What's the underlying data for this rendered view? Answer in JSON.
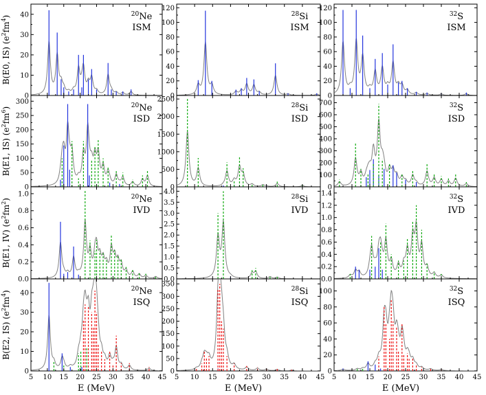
{
  "figure": {
    "xlabel": "E (MeV)",
    "row_ylabels": [
      {
        "main": "B(E0, IS) (e",
        "sup1": "2",
        "mid": "fm",
        "sup2": "4",
        "end": ")"
      },
      {
        "main": "B(E1, IS) (e",
        "sup1": "2",
        "mid": "fm",
        "sup2": "6",
        "end": ")"
      },
      {
        "main": "B(E1, IV) (e",
        "sup1": "2",
        "mid": "fm",
        "sup2": "2",
        "end": ")"
      },
      {
        "main": "B(E2, IS) (e",
        "sup1": "2",
        "mid": "fm",
        "sup2": "4",
        "end": ")"
      }
    ],
    "x_ticks": [
      "5",
      "10",
      "15",
      "20",
      "25",
      "30",
      "35",
      "40",
      "45"
    ],
    "nuclei": [
      {
        "mass": "20",
        "symbol": "Ne"
      },
      {
        "mass": "28",
        "symbol": "Si"
      },
      {
        "mass": "32",
        "symbol": "S"
      }
    ],
    "modes": [
      "ISM",
      "ISD",
      "IVD",
      "ISQ"
    ],
    "colors": {
      "envelope": "#808080",
      "bar_blue": "#2233dd",
      "bar_green": "#11aa11",
      "bar_red": "#ee1111"
    }
  },
  "chart_data": [
    {
      "type": "line",
      "row": 0,
      "col": 0,
      "nucleus": "20Ne",
      "mode": "ISM",
      "xlim": [
        5,
        45
      ],
      "ylim": [
        0,
        45
      ],
      "y_ticks": [
        "0",
        "10",
        "20",
        "30",
        "40"
      ],
      "bar_color": "blue",
      "bar_style": "solid",
      "bars": [
        [
          10.5,
          42
        ],
        [
          13.0,
          31
        ],
        [
          14.2,
          8
        ],
        [
          15.0,
          4
        ],
        [
          16.5,
          2
        ],
        [
          18.0,
          3
        ],
        [
          19.5,
          20
        ],
        [
          20.5,
          4
        ],
        [
          21.0,
          20
        ],
        [
          22.5,
          8
        ],
        [
          23.5,
          13
        ],
        [
          25.0,
          3
        ],
        [
          28.5,
          16
        ],
        [
          29.5,
          3
        ],
        [
          31.0,
          2
        ],
        [
          33.0,
          2
        ],
        [
          35.5,
          3
        ]
      ],
      "envelope_width": 0.5
    },
    {
      "type": "line",
      "row": 0,
      "col": 1,
      "nucleus": "28Si",
      "mode": "ISM",
      "xlim": [
        5,
        45
      ],
      "ylim": [
        0,
        125
      ],
      "y_ticks": [
        "0",
        "20",
        "40",
        "60",
        "80",
        "100",
        "120"
      ],
      "bar_color": "blue",
      "bar_style": "solid",
      "bars": [
        [
          11.0,
          21
        ],
        [
          13.0,
          116
        ],
        [
          14.8,
          20
        ],
        [
          21.5,
          8
        ],
        [
          23.0,
          10
        ],
        [
          24.5,
          24
        ],
        [
          26.5,
          22
        ],
        [
          28.0,
          6
        ],
        [
          32.5,
          44
        ],
        [
          36.0,
          3
        ],
        [
          44.0,
          3
        ]
      ],
      "envelope_width": 0.5
    },
    {
      "type": "line",
      "row": 0,
      "col": 2,
      "nucleus": "32S",
      "mode": "ISM",
      "xlim": [
        5,
        45
      ],
      "ylim": [
        0,
        125
      ],
      "y_ticks": [
        "0",
        "20",
        "40",
        "60",
        "80",
        "100",
        "120"
      ],
      "bar_color": "blue",
      "bar_style": "solid",
      "bars": [
        [
          7.5,
          117
        ],
        [
          9.5,
          10
        ],
        [
          11.2,
          117
        ],
        [
          13.0,
          82
        ],
        [
          15.0,
          10
        ],
        [
          16.5,
          50
        ],
        [
          18.5,
          58
        ],
        [
          20.0,
          15
        ],
        [
          21.5,
          70
        ],
        [
          23.0,
          18
        ],
        [
          24.0,
          20
        ],
        [
          25.5,
          10
        ],
        [
          28.0,
          5
        ],
        [
          31.0,
          4
        ],
        [
          35.0,
          3
        ],
        [
          42.0,
          4
        ]
      ],
      "envelope_width": 0.5
    },
    {
      "type": "line",
      "row": 1,
      "col": 0,
      "nucleus": "20Ne",
      "mode": "ISD",
      "xlim": [
        5,
        45
      ],
      "ylim": [
        0,
        320
      ],
      "y_ticks": [
        "0",
        "50",
        "100",
        "150",
        "200",
        "250",
        "300"
      ],
      "bars_blue": [
        [
          14.0,
          25
        ],
        [
          15.0,
          145
        ],
        [
          16.2,
          290
        ],
        [
          16.8,
          60
        ],
        [
          22.3,
          290
        ],
        [
          22.8,
          40
        ],
        [
          29.0,
          15
        ],
        [
          32.0,
          10
        ]
      ],
      "bars_green": [
        [
          14.5,
          100
        ],
        [
          17.5,
          160
        ],
        [
          19.5,
          30
        ],
        [
          21.0,
          160
        ],
        [
          23.5,
          95
        ],
        [
          24.5,
          140
        ],
        [
          25.5,
          165
        ],
        [
          27.0,
          100
        ],
        [
          28.5,
          70
        ],
        [
          31.0,
          60
        ],
        [
          33.0,
          50
        ],
        [
          36.0,
          25
        ],
        [
          39.0,
          40
        ],
        [
          40.5,
          60
        ]
      ],
      "envelope_width": 0.5
    },
    {
      "type": "line",
      "row": 1,
      "col": 1,
      "nucleus": "28Si",
      "mode": "ISD",
      "xlim": [
        5,
        45
      ],
      "ylim": [
        0,
        2600
      ],
      "y_ticks": [
        "0",
        "500",
        "1000",
        "1500",
        "2000",
        "2500"
      ],
      "bars_blue": [
        [
          18.0,
          40
        ],
        [
          21.0,
          60
        ],
        [
          30.0,
          30
        ]
      ],
      "bars_green": [
        [
          8.0,
          2530
        ],
        [
          11.0,
          820
        ],
        [
          19.0,
          700
        ],
        [
          21.0,
          200
        ],
        [
          22.5,
          860
        ],
        [
          23.5,
          530
        ],
        [
          26.0,
          100
        ],
        [
          29.0,
          80
        ],
        [
          33.0,
          150
        ],
        [
          40.0,
          60
        ]
      ],
      "envelope_width": 0.5
    },
    {
      "type": "line",
      "row": 1,
      "col": 2,
      "nucleus": "32S",
      "mode": "ISD",
      "xlim": [
        5,
        45
      ],
      "ylim": [
        0,
        760
      ],
      "y_ticks": [
        "0",
        "100",
        "200",
        "300",
        "400",
        "500",
        "600",
        "700"
      ],
      "bars_blue": [
        [
          14.0,
          80
        ],
        [
          15.0,
          140
        ],
        [
          16.0,
          230
        ],
        [
          17.5,
          100
        ],
        [
          19.0,
          150
        ],
        [
          21.5,
          180
        ],
        [
          22.5,
          120
        ],
        [
          25.0,
          60
        ],
        [
          28.0,
          40
        ]
      ],
      "bars_green": [
        [
          6.5,
          60
        ],
        [
          11.0,
          360
        ],
        [
          12.5,
          150
        ],
        [
          14.5,
          110
        ],
        [
          16.0,
          200
        ],
        [
          17.5,
          690
        ],
        [
          18.5,
          230
        ],
        [
          20.5,
          190
        ],
        [
          24.0,
          110
        ],
        [
          27.0,
          140
        ],
        [
          31.0,
          200
        ],
        [
          33.0,
          110
        ],
        [
          35.0,
          90
        ],
        [
          37.0,
          70
        ],
        [
          39.0,
          110
        ],
        [
          42.0,
          40
        ]
      ],
      "envelope_width": 0.5
    },
    {
      "type": "line",
      "row": 2,
      "col": 0,
      "nucleus": "20Ne",
      "mode": "IVD",
      "xlim": [
        5,
        45
      ],
      "ylim": [
        0,
        1.08
      ],
      "y_ticks": [
        "0.0",
        "0.2",
        "0.4",
        "0.6",
        "0.8",
        "1.0"
      ],
      "bars_blue": [
        [
          14.0,
          0.67
        ],
        [
          15.0,
          0.06
        ],
        [
          16.2,
          0.08
        ],
        [
          18.0,
          0.38
        ],
        [
          19.5,
          0.05
        ]
      ],
      "bars_green": [
        [
          21.5,
          1.04
        ],
        [
          23.0,
          0.45
        ],
        [
          24.5,
          0.33
        ],
        [
          25.0,
          0.46
        ],
        [
          26.0,
          0.33
        ],
        [
          27.0,
          0.3
        ],
        [
          28.0,
          0.22
        ],
        [
          29.5,
          0.52
        ],
        [
          30.5,
          0.34
        ],
        [
          31.5,
          0.28
        ],
        [
          32.5,
          0.24
        ],
        [
          34.0,
          0.14
        ],
        [
          36.0,
          0.12
        ],
        [
          38.0,
          0.08
        ],
        [
          40.0,
          0.06
        ],
        [
          43.0,
          0.04
        ]
      ],
      "envelope_width": 0.5
    },
    {
      "type": "line",
      "row": 2,
      "col": 1,
      "nucleus": "28Si",
      "mode": "IVD",
      "xlim": [
        5,
        45
      ],
      "ylim": [
        0,
        4.2
      ],
      "y_ticks": [
        "0.0",
        "0.5",
        "1.0",
        "1.5",
        "2.0",
        "2.5",
        "3.0",
        "3.5",
        "4.0"
      ],
      "bars_blue": [
        [
          20.0,
          0.08
        ]
      ],
      "bars_green": [
        [
          16.5,
          3.0
        ],
        [
          18.0,
          4.0
        ],
        [
          26.0,
          0.4
        ],
        [
          27.0,
          0.5
        ],
        [
          31.0,
          0.15
        ],
        [
          33.0,
          0.12
        ]
      ],
      "envelope_width": 0.5
    },
    {
      "type": "line",
      "row": 2,
      "col": 2,
      "nucleus": "32S",
      "mode": "IVD",
      "xlim": [
        5,
        45
      ],
      "ylim": [
        0,
        1.5
      ],
      "y_ticks": [
        "0.0",
        "0.2",
        "0.4",
        "0.6",
        "0.8",
        "1.0",
        "1.2",
        "1.4"
      ],
      "bars_blue": [
        [
          11.0,
          0.2
        ],
        [
          12.0,
          0.15
        ],
        [
          15.0,
          0.15
        ],
        [
          16.5,
          0.2
        ],
        [
          17.5,
          0.5
        ],
        [
          18.5,
          0.15
        ]
      ],
      "bars_green": [
        [
          9.5,
          0.08
        ],
        [
          15.5,
          0.7
        ],
        [
          18.0,
          0.6
        ],
        [
          19.5,
          0.9
        ],
        [
          21.0,
          0.4
        ],
        [
          23.0,
          0.3
        ],
        [
          24.5,
          0.3
        ],
        [
          25.5,
          0.65
        ],
        [
          27.0,
          0.95
        ],
        [
          28.0,
          1.2
        ],
        [
          29.5,
          0.8
        ],
        [
          31.0,
          0.25
        ],
        [
          33.0,
          0.12
        ],
        [
          35.0,
          0.08
        ]
      ],
      "envelope_width": 0.5
    },
    {
      "type": "line",
      "row": 3,
      "col": 0,
      "nucleus": "20Ne",
      "mode": "ISQ",
      "xlim": [
        5,
        45
      ],
      "ylim": [
        0,
        47
      ],
      "y_ticks": [
        "0",
        "10",
        "20",
        "30",
        "40"
      ],
      "bars_blue": [
        [
          10.5,
          45
        ],
        [
          14.5,
          9
        ],
        [
          17.0,
          2
        ],
        [
          20.5,
          2
        ]
      ],
      "bars_green": [
        [
          12.0,
          5
        ],
        [
          15.0,
          3
        ],
        [
          19.5,
          9
        ],
        [
          20.2,
          10
        ],
        [
          22.0,
          12
        ]
      ],
      "bars_red": [
        [
          21.0,
          26
        ],
        [
          21.5,
          34
        ],
        [
          22.5,
          33
        ],
        [
          23.5,
          30
        ],
        [
          24.0,
          22
        ],
        [
          24.5,
          41
        ],
        [
          25.0,
          30
        ],
        [
          25.5,
          14
        ],
        [
          26.5,
          10
        ],
        [
          27.5,
          6
        ],
        [
          29.0,
          10
        ],
        [
          30.0,
          3
        ],
        [
          31.0,
          18
        ],
        [
          32.5,
          4
        ],
        [
          35.0,
          4
        ],
        [
          41.0,
          2
        ]
      ],
      "envelope_width": 0.5
    },
    {
      "type": "line",
      "row": 3,
      "col": 1,
      "nucleus": "28Si",
      "mode": "ISQ",
      "xlim": [
        5,
        45
      ],
      "ylim": [
        0,
        370
      ],
      "y_ticks": [
        "0",
        "50",
        "100",
        "150",
        "200",
        "250",
        "300",
        "350"
      ],
      "bars_blue": [
        [
          16.5,
          10
        ]
      ],
      "bars_green": [],
      "bars_red": [
        [
          10.5,
          10
        ],
        [
          12.0,
          30
        ],
        [
          12.7,
          80
        ],
        [
          13.3,
          50
        ],
        [
          14.0,
          60
        ],
        [
          16.5,
          330
        ],
        [
          17.0,
          350
        ],
        [
          17.5,
          200
        ],
        [
          18.0,
          170
        ],
        [
          19.0,
          60
        ],
        [
          21.0,
          30
        ],
        [
          24.5,
          20
        ],
        [
          27.5,
          15
        ],
        [
          30.0,
          10
        ],
        [
          33.0,
          8
        ],
        [
          37.0,
          5
        ]
      ],
      "envelope_width": 0.5
    },
    {
      "type": "line",
      "row": 3,
      "col": 2,
      "nucleus": "32S",
      "mode": "ISQ",
      "xlim": [
        5,
        45
      ],
      "ylim": [
        0,
        115
      ],
      "y_ticks": [
        "0",
        "20",
        "40",
        "60",
        "80",
        "100"
      ],
      "bars_blue": [
        [
          7.5,
          3
        ],
        [
          14.5,
          12
        ],
        [
          16.5,
          8
        ],
        [
          18.0,
          3
        ]
      ],
      "bars_green": [
        [
          11.5,
          3
        ],
        [
          13.0,
          3
        ]
      ],
      "bars_red": [
        [
          17.5,
          18
        ],
        [
          19.0,
          80
        ],
        [
          19.5,
          60
        ],
        [
          20.5,
          40
        ],
        [
          21.0,
          90
        ],
        [
          21.5,
          62
        ],
        [
          22.5,
          55
        ],
        [
          23.0,
          25
        ],
        [
          24.0,
          60
        ],
        [
          24.5,
          20
        ],
        [
          25.5,
          22
        ],
        [
          26.0,
          15
        ],
        [
          27.0,
          17
        ],
        [
          28.0,
          8
        ],
        [
          29.5,
          5
        ],
        [
          32.0,
          3
        ],
        [
          35.0,
          2
        ]
      ],
      "envelope_width": 0.5
    }
  ]
}
